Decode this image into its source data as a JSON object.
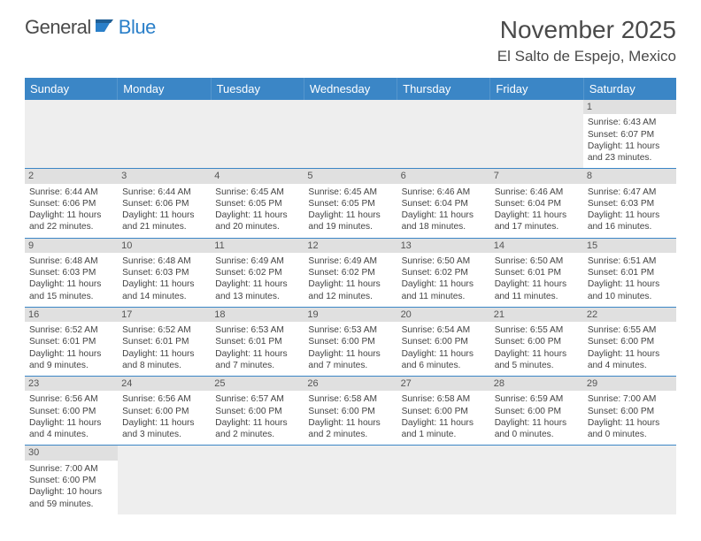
{
  "logo": {
    "text1": "General",
    "text2": "Blue"
  },
  "title": "November 2025",
  "location": "El Salto de Espejo, Mexico",
  "colors": {
    "header_bg": "#3b86c6",
    "header_text": "#ffffff",
    "date_bar_bg": "#e0e0e0",
    "row_border": "#3b86c6",
    "empty_bg": "#eeeeee",
    "text": "#444444",
    "logo_gray": "#4a4a4a",
    "logo_blue": "#2a7fc9"
  },
  "typography": {
    "title_fontsize": 28,
    "location_fontsize": 17,
    "dayhead_fontsize": 13,
    "cell_fontsize": 10.2,
    "date_fontsize": 11
  },
  "day_headers": [
    "Sunday",
    "Monday",
    "Tuesday",
    "Wednesday",
    "Thursday",
    "Friday",
    "Saturday"
  ],
  "weeks": [
    [
      {
        "empty": true
      },
      {
        "empty": true
      },
      {
        "empty": true
      },
      {
        "empty": true
      },
      {
        "empty": true
      },
      {
        "empty": true
      },
      {
        "date": "1",
        "sunrise": "Sunrise: 6:43 AM",
        "sunset": "Sunset: 6:07 PM",
        "daylight": "Daylight: 11 hours and 23 minutes."
      }
    ],
    [
      {
        "date": "2",
        "sunrise": "Sunrise: 6:44 AM",
        "sunset": "Sunset: 6:06 PM",
        "daylight": "Daylight: 11 hours and 22 minutes."
      },
      {
        "date": "3",
        "sunrise": "Sunrise: 6:44 AM",
        "sunset": "Sunset: 6:06 PM",
        "daylight": "Daylight: 11 hours and 21 minutes."
      },
      {
        "date": "4",
        "sunrise": "Sunrise: 6:45 AM",
        "sunset": "Sunset: 6:05 PM",
        "daylight": "Daylight: 11 hours and 20 minutes."
      },
      {
        "date": "5",
        "sunrise": "Sunrise: 6:45 AM",
        "sunset": "Sunset: 6:05 PM",
        "daylight": "Daylight: 11 hours and 19 minutes."
      },
      {
        "date": "6",
        "sunrise": "Sunrise: 6:46 AM",
        "sunset": "Sunset: 6:04 PM",
        "daylight": "Daylight: 11 hours and 18 minutes."
      },
      {
        "date": "7",
        "sunrise": "Sunrise: 6:46 AM",
        "sunset": "Sunset: 6:04 PM",
        "daylight": "Daylight: 11 hours and 17 minutes."
      },
      {
        "date": "8",
        "sunrise": "Sunrise: 6:47 AM",
        "sunset": "Sunset: 6:03 PM",
        "daylight": "Daylight: 11 hours and 16 minutes."
      }
    ],
    [
      {
        "date": "9",
        "sunrise": "Sunrise: 6:48 AM",
        "sunset": "Sunset: 6:03 PM",
        "daylight": "Daylight: 11 hours and 15 minutes."
      },
      {
        "date": "10",
        "sunrise": "Sunrise: 6:48 AM",
        "sunset": "Sunset: 6:03 PM",
        "daylight": "Daylight: 11 hours and 14 minutes."
      },
      {
        "date": "11",
        "sunrise": "Sunrise: 6:49 AM",
        "sunset": "Sunset: 6:02 PM",
        "daylight": "Daylight: 11 hours and 13 minutes."
      },
      {
        "date": "12",
        "sunrise": "Sunrise: 6:49 AM",
        "sunset": "Sunset: 6:02 PM",
        "daylight": "Daylight: 11 hours and 12 minutes."
      },
      {
        "date": "13",
        "sunrise": "Sunrise: 6:50 AM",
        "sunset": "Sunset: 6:02 PM",
        "daylight": "Daylight: 11 hours and 11 minutes."
      },
      {
        "date": "14",
        "sunrise": "Sunrise: 6:50 AM",
        "sunset": "Sunset: 6:01 PM",
        "daylight": "Daylight: 11 hours and 11 minutes."
      },
      {
        "date": "15",
        "sunrise": "Sunrise: 6:51 AM",
        "sunset": "Sunset: 6:01 PM",
        "daylight": "Daylight: 11 hours and 10 minutes."
      }
    ],
    [
      {
        "date": "16",
        "sunrise": "Sunrise: 6:52 AM",
        "sunset": "Sunset: 6:01 PM",
        "daylight": "Daylight: 11 hours and 9 minutes."
      },
      {
        "date": "17",
        "sunrise": "Sunrise: 6:52 AM",
        "sunset": "Sunset: 6:01 PM",
        "daylight": "Daylight: 11 hours and 8 minutes."
      },
      {
        "date": "18",
        "sunrise": "Sunrise: 6:53 AM",
        "sunset": "Sunset: 6:01 PM",
        "daylight": "Daylight: 11 hours and 7 minutes."
      },
      {
        "date": "19",
        "sunrise": "Sunrise: 6:53 AM",
        "sunset": "Sunset: 6:00 PM",
        "daylight": "Daylight: 11 hours and 7 minutes."
      },
      {
        "date": "20",
        "sunrise": "Sunrise: 6:54 AM",
        "sunset": "Sunset: 6:00 PM",
        "daylight": "Daylight: 11 hours and 6 minutes."
      },
      {
        "date": "21",
        "sunrise": "Sunrise: 6:55 AM",
        "sunset": "Sunset: 6:00 PM",
        "daylight": "Daylight: 11 hours and 5 minutes."
      },
      {
        "date": "22",
        "sunrise": "Sunrise: 6:55 AM",
        "sunset": "Sunset: 6:00 PM",
        "daylight": "Daylight: 11 hours and 4 minutes."
      }
    ],
    [
      {
        "date": "23",
        "sunrise": "Sunrise: 6:56 AM",
        "sunset": "Sunset: 6:00 PM",
        "daylight": "Daylight: 11 hours and 4 minutes."
      },
      {
        "date": "24",
        "sunrise": "Sunrise: 6:56 AM",
        "sunset": "Sunset: 6:00 PM",
        "daylight": "Daylight: 11 hours and 3 minutes."
      },
      {
        "date": "25",
        "sunrise": "Sunrise: 6:57 AM",
        "sunset": "Sunset: 6:00 PM",
        "daylight": "Daylight: 11 hours and 2 minutes."
      },
      {
        "date": "26",
        "sunrise": "Sunrise: 6:58 AM",
        "sunset": "Sunset: 6:00 PM",
        "daylight": "Daylight: 11 hours and 2 minutes."
      },
      {
        "date": "27",
        "sunrise": "Sunrise: 6:58 AM",
        "sunset": "Sunset: 6:00 PM",
        "daylight": "Daylight: 11 hours and 1 minute."
      },
      {
        "date": "28",
        "sunrise": "Sunrise: 6:59 AM",
        "sunset": "Sunset: 6:00 PM",
        "daylight": "Daylight: 11 hours and 0 minutes."
      },
      {
        "date": "29",
        "sunrise": "Sunrise: 7:00 AM",
        "sunset": "Sunset: 6:00 PM",
        "daylight": "Daylight: 11 hours and 0 minutes."
      }
    ],
    [
      {
        "date": "30",
        "sunrise": "Sunrise: 7:00 AM",
        "sunset": "Sunset: 6:00 PM",
        "daylight": "Daylight: 10 hours and 59 minutes."
      },
      {
        "empty": true
      },
      {
        "empty": true
      },
      {
        "empty": true
      },
      {
        "empty": true
      },
      {
        "empty": true
      },
      {
        "empty": true
      }
    ]
  ]
}
